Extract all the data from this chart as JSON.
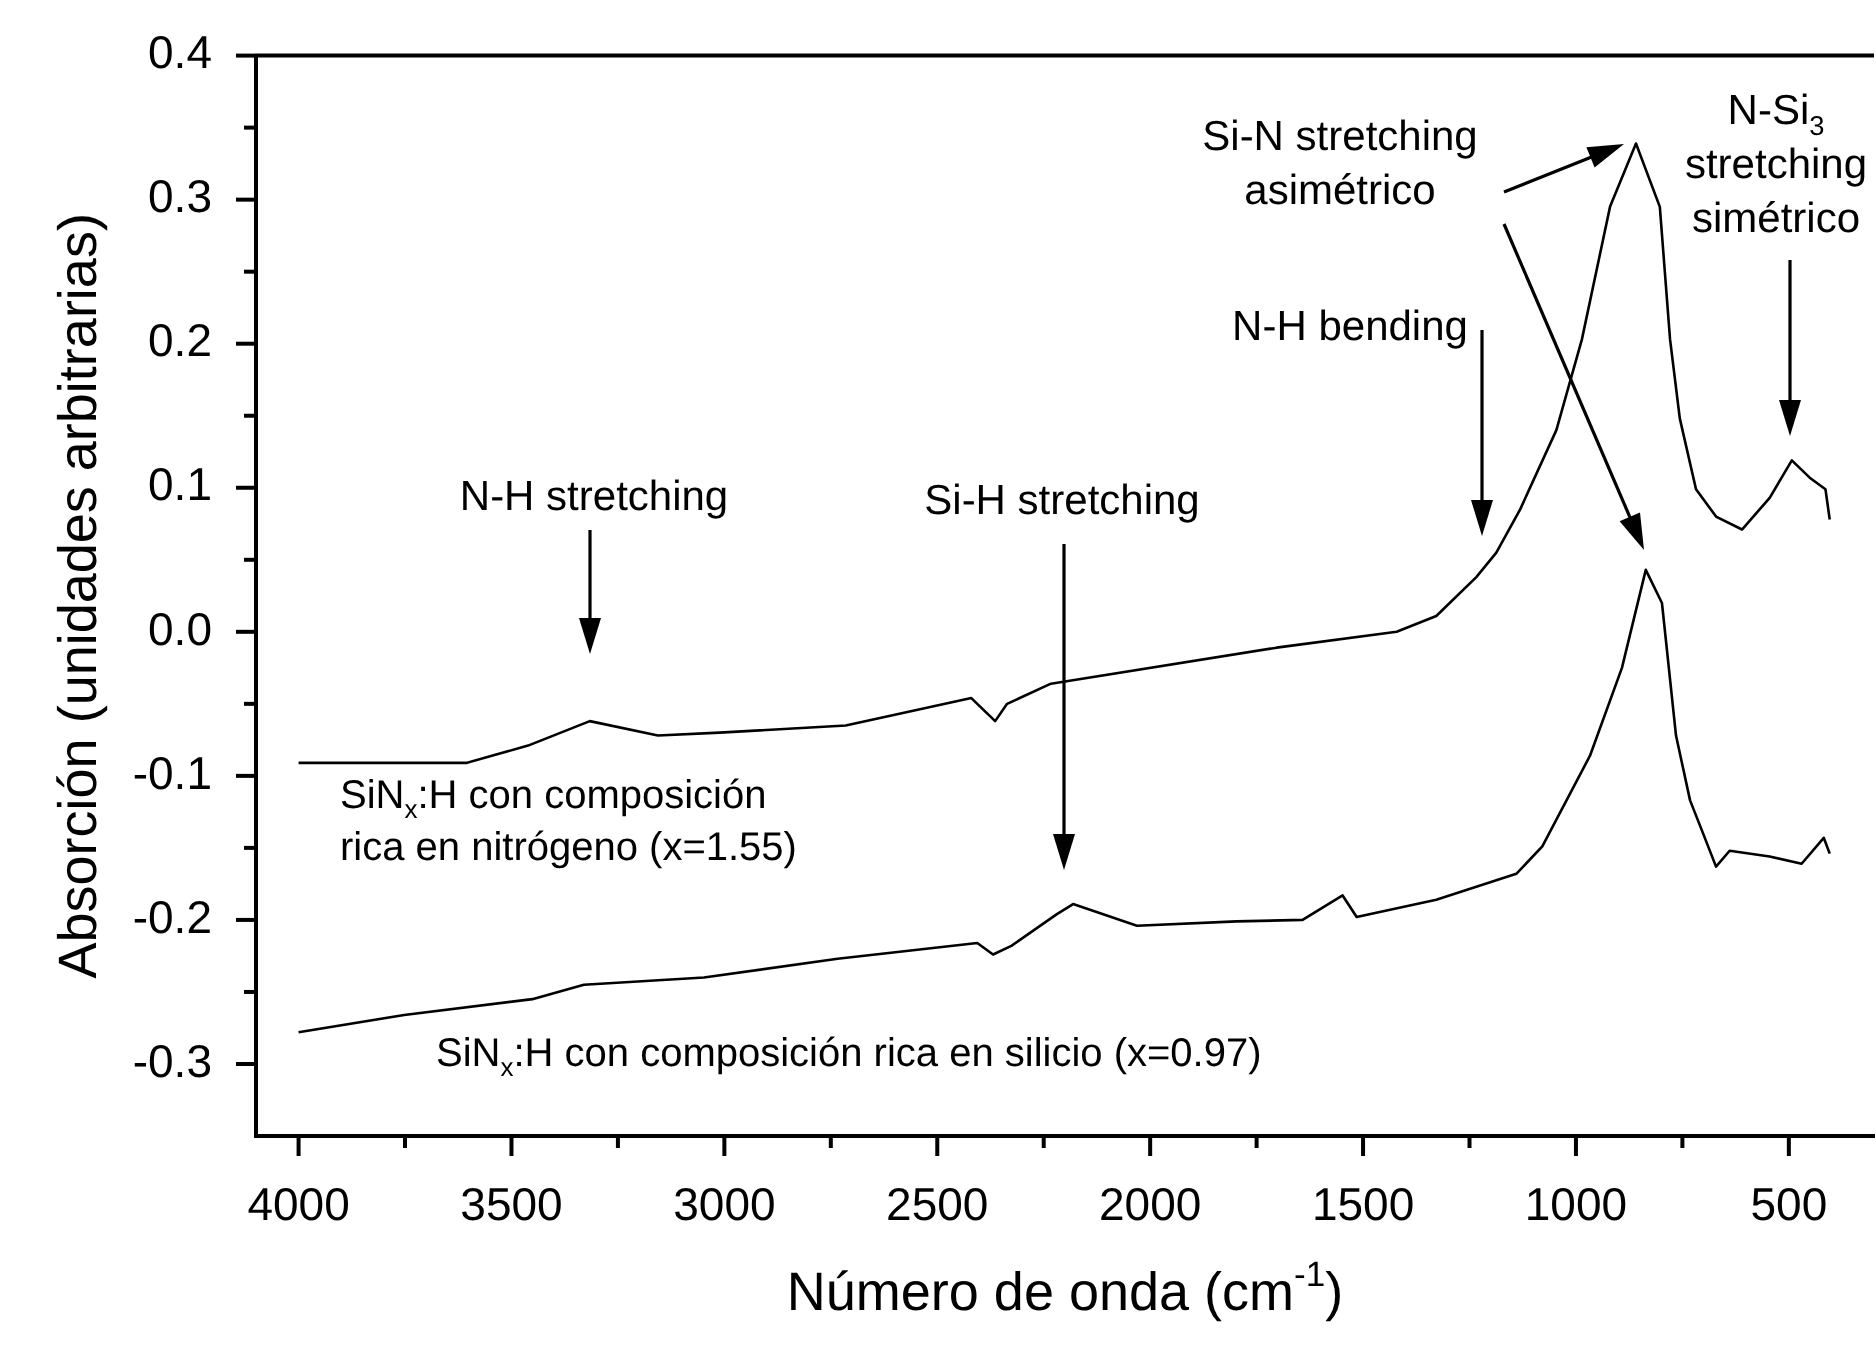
{
  "chart_data": {
    "type": "line",
    "xlabel": "Número de onda (cm$^{-1}$)",
    "ylabel": "Absorción (unidades arbitrarias)",
    "xlim": [
      4100,
      300
    ],
    "xticks": [
      4000,
      {
        "value": 3750,
        "label": null
      },
      3500,
      {
        "value": 3250,
        "label": null
      },
      3000,
      {
        "value": 2750,
        "label": null
      },
      2500,
      {
        "value": 2250,
        "label": null
      },
      2000,
      {
        "value": 1750,
        "label": null
      },
      1500,
      {
        "value": 1250,
        "label": null
      },
      1000,
      {
        "value": 750,
        "label": null
      },
      500
    ],
    "ylim": [
      -0.35,
      0.4
    ],
    "yticks": [
      -0.3,
      {
        "value": -0.25,
        "label": null
      },
      -0.2,
      {
        "value": -0.15,
        "label": null
      },
      -0.1,
      {
        "value": -0.05,
        "label": null
      },
      {
        "value": 0,
        "label": "0.0"
      },
      {
        "value": 0.05,
        "label": null
      },
      0.1,
      {
        "value": 0.15,
        "label": null
      },
      0.2,
      {
        "value": 0.25,
        "label": null
      },
      0.3,
      {
        "value": 0.35,
        "label": null
      },
      0.4
    ],
    "marker": "none",
    "series": [
      {
        "name": "SiN$_{x}$:H con composición rica en nitrógeno (x=1.55)",
        "color": "#000000",
        "x": [
          4000,
          3606,
          3461,
          3316,
          3156,
          3011,
          2715,
          2420,
          2364,
          2336,
          2233,
          1703,
          1421,
          1328,
          1234,
          1187,
          1131,
          1046,
          986,
          920,
          859,
          803,
          779,
          756,
          718,
          671,
          610,
          545,
          493,
          451,
          414,
          404
        ],
        "values": [
          -0.091,
          -0.091,
          -0.079,
          -0.062,
          -0.072,
          -0.07,
          -0.065,
          -0.046,
          -0.062,
          -0.05,
          -0.036,
          -0.011,
          0.0,
          0.011,
          0.038,
          0.055,
          0.085,
          0.14,
          0.203,
          0.295,
          0.339,
          0.295,
          0.203,
          0.148,
          0.099,
          0.08,
          0.071,
          0.093,
          0.119,
          0.107,
          0.099,
          0.078
        ]
      },
      {
        "name": "SiN$_{x}$:H con composición rica en silicio (x=0.97)",
        "color": "#000000",
        "x": [
          4000,
          3752,
          3451,
          3330,
          3048,
          2734,
          2406,
          2369,
          2326,
          2219,
          2181,
          2031,
          1797,
          1642,
          1548,
          1515,
          1328,
          1140,
          1079,
          967,
          892,
          836,
          798,
          765,
          732,
          704,
          671,
          639,
          545,
          470,
          418,
          404
        ],
        "values": [
          -0.278,
          -0.266,
          -0.255,
          -0.245,
          -0.24,
          -0.227,
          -0.216,
          -0.224,
          -0.218,
          -0.196,
          -0.189,
          -0.204,
          -0.201,
          -0.2,
          -0.183,
          -0.198,
          -0.186,
          -0.168,
          -0.149,
          -0.086,
          -0.025,
          0.043,
          0.02,
          -0.072,
          -0.117,
          -0.138,
          -0.163,
          -0.152,
          -0.156,
          -0.161,
          -0.143,
          -0.154
        ]
      }
    ],
    "annotations": [
      "N-H stretching",
      "Si-H stretching",
      "N-H bending",
      "Si-N stretching asimétrico",
      "N-Si$_{3}$ stretching simétrico"
    ]
  }
}
